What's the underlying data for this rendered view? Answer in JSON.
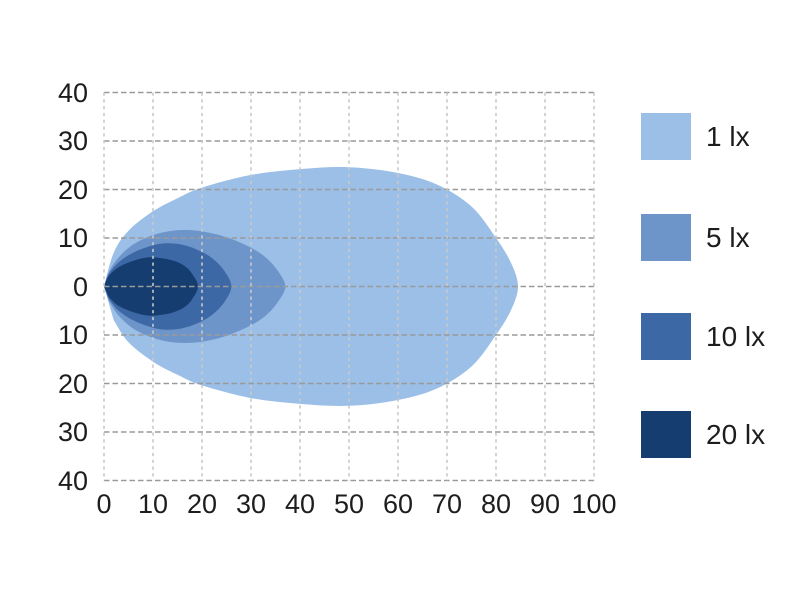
{
  "chart_data": {
    "type": "area",
    "subtype": "isolux-illuminance-contour-map",
    "title": "",
    "xlabel": "",
    "ylabel": "",
    "xlim": [
      0,
      100
    ],
    "ylim": [
      -40,
      40
    ],
    "x_ticks": [
      0,
      10,
      20,
      30,
      40,
      50,
      60,
      70,
      80,
      90,
      100
    ],
    "x_tick_labels": [
      "0",
      "10",
      "20",
      "30",
      "40",
      "50",
      "60",
      "70",
      "80",
      "90",
      "100"
    ],
    "y_ticks": [
      40,
      30,
      20,
      10,
      0,
      -10,
      -20,
      -30,
      -40
    ],
    "y_tick_labels": [
      "40",
      "30",
      "20",
      "10",
      "0",
      "10",
      "20",
      "30",
      "40"
    ],
    "grid": {
      "style": "dashed",
      "horizontal_color": "#9a9a9a",
      "vertical_color": "#c9c9c9",
      "background": "#ffffff"
    },
    "text_color": "#1d1d1d",
    "series": [
      {
        "name": "1 lx",
        "level_lx": 1,
        "color": "#9bbfe7",
        "outline_x_halfwidth": [
          [
            0,
            0
          ],
          [
            2,
            7
          ],
          [
            5,
            11.5
          ],
          [
            10,
            15.5
          ],
          [
            15,
            18.2
          ],
          [
            20,
            20.4
          ],
          [
            30,
            23
          ],
          [
            40,
            24.2
          ],
          [
            50,
            24.6
          ],
          [
            60,
            23.4
          ],
          [
            68,
            21
          ],
          [
            75,
            16.5
          ],
          [
            80,
            10
          ],
          [
            83,
            5
          ],
          [
            84.5,
            0
          ]
        ]
      },
      {
        "name": "5 lx",
        "level_lx": 5,
        "color": "#6e95c9",
        "outline_x_halfwidth": [
          [
            0,
            0
          ],
          [
            1,
            3
          ],
          [
            3,
            6
          ],
          [
            6,
            8.7
          ],
          [
            10,
            10.6
          ],
          [
            14,
            11.5
          ],
          [
            18,
            11.6
          ],
          [
            22,
            11
          ],
          [
            26,
            9.8
          ],
          [
            30,
            8
          ],
          [
            33,
            6
          ],
          [
            35.5,
            3.2
          ],
          [
            37,
            0
          ]
        ]
      },
      {
        "name": "10 lx",
        "level_lx": 10,
        "color": "#3d68a6",
        "outline_x_halfwidth": [
          [
            0,
            0
          ],
          [
            1,
            2.6
          ],
          [
            3,
            5
          ],
          [
            6,
            7
          ],
          [
            10,
            8.5
          ],
          [
            13,
            8.9
          ],
          [
            16,
            8.6
          ],
          [
            19,
            7.6
          ],
          [
            22,
            5.9
          ],
          [
            24.5,
            3.3
          ],
          [
            26,
            0
          ]
        ]
      },
      {
        "name": "20 lx",
        "level_lx": 20,
        "color": "#163d70",
        "outline_x_halfwidth": [
          [
            0,
            0
          ],
          [
            1,
            2.2
          ],
          [
            3,
            4
          ],
          [
            6,
            5.3
          ],
          [
            9,
            6
          ],
          [
            12,
            5.8
          ],
          [
            14.5,
            5.2
          ],
          [
            16.5,
            4.2
          ],
          [
            18,
            2.6
          ],
          [
            19.2,
            0
          ]
        ]
      }
    ],
    "legend": {
      "position": "right",
      "items": [
        {
          "label": "1 lx",
          "color": "#9bbfe7"
        },
        {
          "label": "5 lx",
          "color": "#6e95c9"
        },
        {
          "label": "10 lx",
          "color": "#3d68a6"
        },
        {
          "label": "20 lx",
          "color": "#163d70"
        }
      ]
    }
  }
}
